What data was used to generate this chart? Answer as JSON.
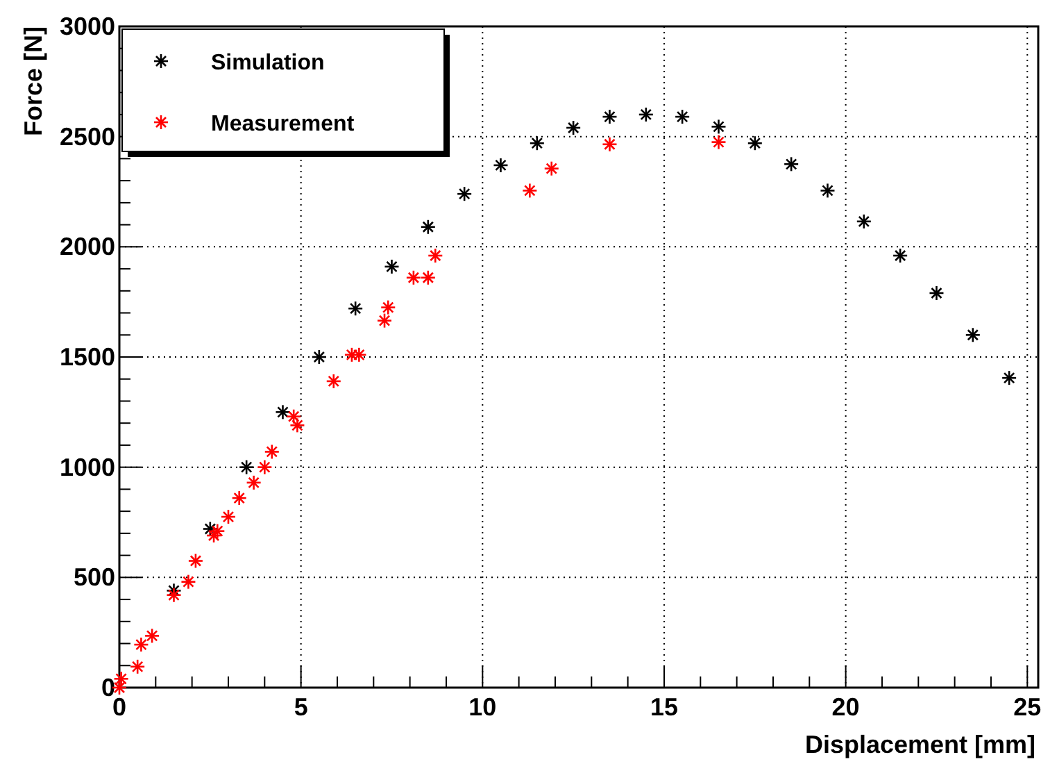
{
  "chart_data": {
    "type": "scatter",
    "xlabel": "Displacement [mm]",
    "ylabel": "Force [N]",
    "xlim": [
      0,
      25.3
    ],
    "ylim": [
      0,
      3000
    ],
    "xticks": [
      0,
      5,
      10,
      15,
      20,
      25
    ],
    "yticks": [
      0,
      500,
      1000,
      1500,
      2000,
      2500,
      3000
    ],
    "grid": true,
    "legend": "top left",
    "marker": "cross",
    "series": [
      {
        "name": "Simulation",
        "color": "#000000",
        "x": [
          1.5,
          2.5,
          3.5,
          4.5,
          5.5,
          6.5,
          7.5,
          8.5,
          9.5,
          10.5,
          11.5,
          12.5,
          13.5,
          14.5,
          15.5,
          16.5,
          17.5,
          18.5,
          19.5,
          20.5,
          21.5,
          22.5,
          23.5,
          24.5
        ],
        "values": [
          440,
          720,
          1000,
          1250,
          1500,
          1720,
          1910,
          2090,
          2240,
          2370,
          2470,
          2540,
          2590,
          2600,
          2590,
          2545,
          2470,
          2375,
          2255,
          2115,
          1960,
          1790,
          1600,
          1405
        ]
      },
      {
        "name": "Measurement",
        "color": "#ff0000",
        "x": [
          0,
          0.05,
          0.5,
          0.6,
          0.9,
          1.5,
          1.9,
          2.1,
          2.6,
          2.7,
          3.0,
          3.3,
          3.7,
          4.0,
          4.2,
          4.8,
          4.9,
          5.9,
          6.4,
          6.6,
          7.3,
          7.4,
          8.1,
          8.5,
          8.7,
          11.3,
          11.9,
          13.5,
          16.5
        ],
        "values": [
          0,
          40,
          95,
          195,
          235,
          420,
          480,
          575,
          690,
          710,
          775,
          860,
          930,
          1000,
          1070,
          1230,
          1190,
          1390,
          1510,
          1510,
          1665,
          1725,
          1860,
          1860,
          1960,
          2255,
          2355,
          2465,
          2475
        ]
      }
    ]
  }
}
